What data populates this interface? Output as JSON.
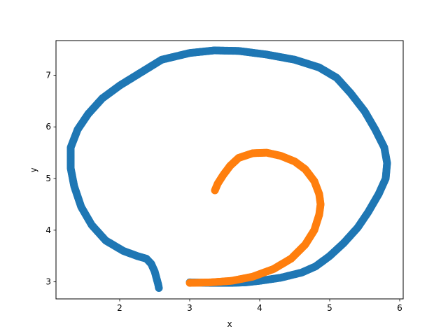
{
  "chart_data": {
    "type": "scatter",
    "title": "",
    "xlabel": "x",
    "ylabel": "y",
    "xlim": [
      1.09,
      6.05
    ],
    "ylim": [
      2.67,
      7.67
    ],
    "xticks": [
      2,
      3,
      4,
      5,
      6
    ],
    "yticks": [
      3,
      4,
      5,
      6,
      7
    ],
    "xtick_labels": [
      "2",
      "3",
      "4",
      "5",
      "6"
    ],
    "ytick_labels": [
      "3",
      "4",
      "5",
      "6",
      "7"
    ],
    "grid": false,
    "legend": "none",
    "series": [
      {
        "color": "#1f77b4",
        "x": [
          3.0,
          3.3,
          3.6,
          3.8,
          4.0,
          4.3,
          4.6,
          4.8,
          5.0,
          5.2,
          5.4,
          5.55,
          5.7,
          5.8,
          5.82,
          5.78,
          5.65,
          5.5,
          5.3,
          5.1,
          4.85,
          4.5,
          4.1,
          3.7,
          3.35,
          3.0,
          2.6,
          2.3,
          2.0,
          1.75,
          1.55,
          1.4,
          1.3,
          1.3,
          1.35,
          1.45,
          1.6,
          1.8,
          2.05,
          2.25,
          2.38,
          2.45,
          2.5,
          2.53,
          2.55,
          2.56
        ],
        "y": [
          2.99,
          2.98,
          2.98,
          2.99,
          3.02,
          3.08,
          3.18,
          3.3,
          3.5,
          3.75,
          4.05,
          4.35,
          4.7,
          5.0,
          5.3,
          5.6,
          5.95,
          6.3,
          6.65,
          6.95,
          7.15,
          7.3,
          7.4,
          7.47,
          7.48,
          7.43,
          7.3,
          7.05,
          6.8,
          6.55,
          6.25,
          5.95,
          5.6,
          5.2,
          4.85,
          4.45,
          4.1,
          3.8,
          3.6,
          3.5,
          3.45,
          3.35,
          3.2,
          3.05,
          2.95,
          2.88
        ]
      },
      {
        "color": "#ff7f0e",
        "x": [
          3.0,
          3.3,
          3.6,
          3.9,
          4.2,
          4.45,
          4.65,
          4.78,
          4.85,
          4.87,
          4.85,
          4.78,
          4.65,
          4.5,
          4.3,
          4.1,
          3.9,
          3.7,
          3.58,
          3.48,
          3.4,
          3.36
        ],
        "y": [
          2.98,
          2.99,
          3.02,
          3.1,
          3.25,
          3.45,
          3.72,
          4.0,
          4.3,
          4.5,
          4.7,
          4.95,
          5.18,
          5.33,
          5.44,
          5.5,
          5.49,
          5.4,
          5.25,
          5.07,
          4.9,
          4.77
        ]
      }
    ]
  }
}
